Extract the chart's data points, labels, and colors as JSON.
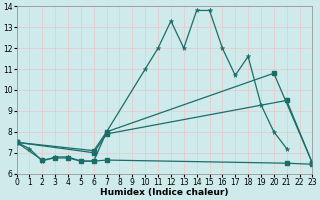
{
  "xlabel": "Humidex (Indice chaleur)",
  "xlim": [
    0,
    23
  ],
  "ylim": [
    6,
    14
  ],
  "yticks": [
    6,
    7,
    8,
    9,
    10,
    11,
    12,
    13,
    14
  ],
  "xticks": [
    0,
    1,
    2,
    3,
    4,
    5,
    6,
    7,
    8,
    9,
    10,
    11,
    12,
    13,
    14,
    15,
    16,
    17,
    18,
    19,
    20,
    21,
    22,
    23
  ],
  "bg_color": "#ceeaea",
  "line_color": "#1a6e6a",
  "jagged_x": [
    0,
    1,
    2,
    3,
    4,
    5,
    6,
    7,
    10,
    11,
    12,
    13,
    14,
    15,
    16,
    17,
    18,
    19,
    20,
    21
  ],
  "jagged_y": [
    7.5,
    7.2,
    6.6,
    6.8,
    6.8,
    6.6,
    6.6,
    8.0,
    11.0,
    12.0,
    13.3,
    12.0,
    13.8,
    13.8,
    12.0,
    10.7,
    11.6,
    9.3,
    8.0,
    7.2
  ],
  "line2_x": [
    0,
    2,
    3,
    4,
    5,
    6,
    7,
    21,
    23
  ],
  "line2_y": [
    7.5,
    6.65,
    6.75,
    6.75,
    6.6,
    6.6,
    6.65,
    6.5,
    6.45
  ],
  "line3_x": [
    0,
    6,
    7,
    21,
    23
  ],
  "line3_y": [
    7.5,
    7.0,
    7.9,
    9.5,
    6.5
  ],
  "line4_x": [
    0,
    6,
    7,
    20,
    23
  ],
  "line4_y": [
    7.5,
    7.1,
    8.0,
    10.8,
    6.5
  ]
}
